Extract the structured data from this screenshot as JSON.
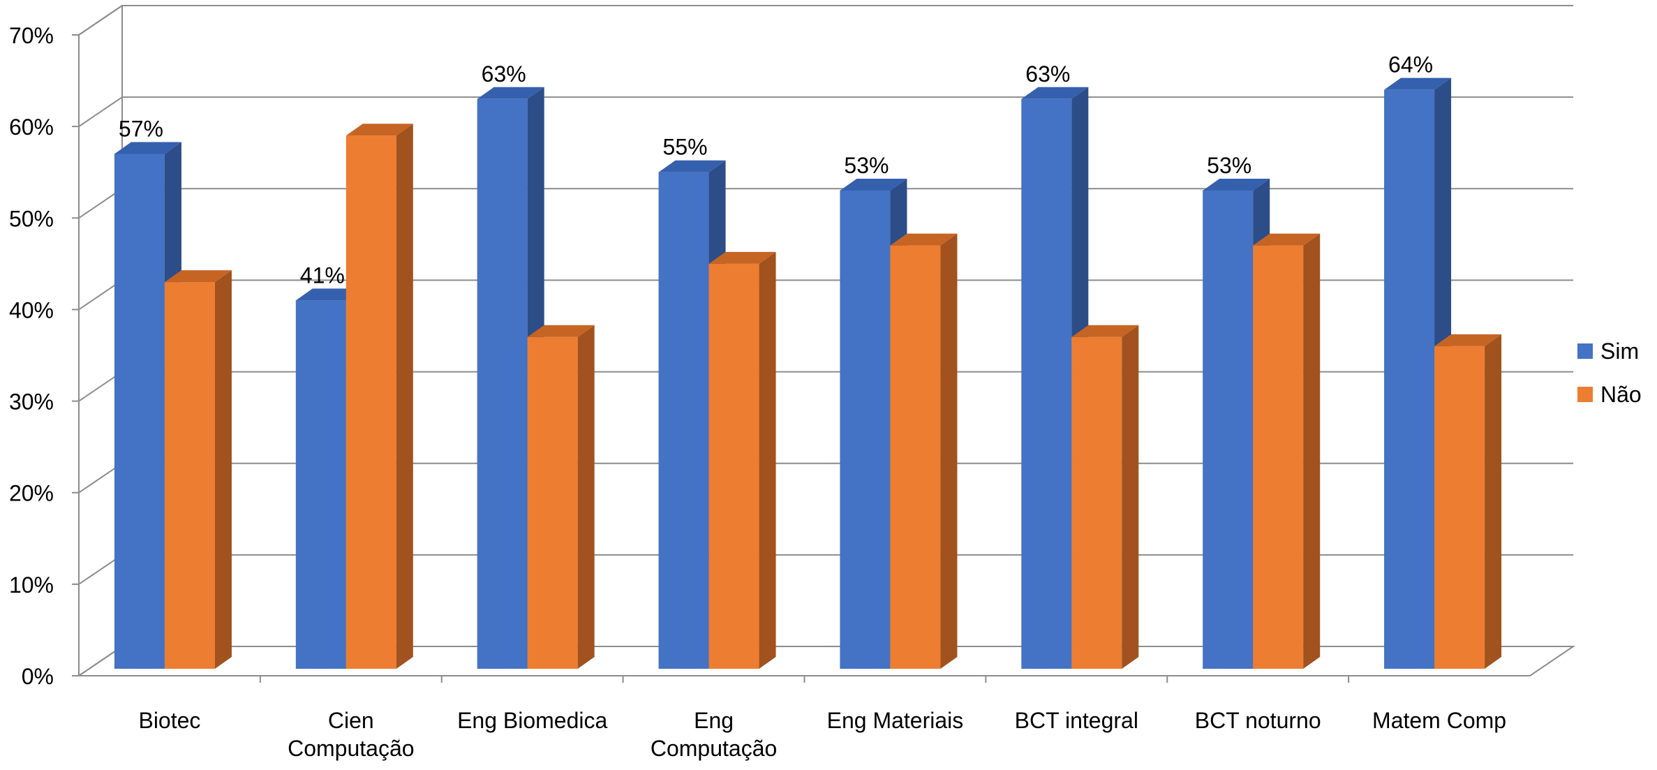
{
  "chart_data": {
    "type": "bar",
    "title": "",
    "xlabel": "",
    "ylabel": "",
    "ylim": [
      0,
      70
    ],
    "y_ticks": [
      "0%",
      "10%",
      "20%",
      "30%",
      "40%",
      "50%",
      "60%",
      "70%"
    ],
    "grid": true,
    "legend_position": "right",
    "categories": [
      [
        "Biotec"
      ],
      [
        "Cien",
        "Computação"
      ],
      [
        "Eng Biomedica"
      ],
      [
        "Eng",
        "Computação"
      ],
      [
        "Eng Materiais"
      ],
      [
        "BCT integral"
      ],
      [
        "BCT noturno"
      ],
      [
        "Matem Comp"
      ]
    ],
    "series": [
      {
        "name": "Sim",
        "color": "#4472C4",
        "side_color": "#2C4D87",
        "top_color": "#3560AE",
        "values": [
          57,
          41,
          63,
          55,
          53,
          63,
          53,
          64
        ],
        "labels": [
          "57%",
          "41%",
          "63%",
          "55%",
          "53%",
          "63%",
          "53%",
          "64%"
        ]
      },
      {
        "name": "Não",
        "color": "#ED7D31",
        "side_color": "#A1521E",
        "top_color": "#C66424",
        "values": [
          43,
          59,
          37,
          45,
          47,
          37,
          47,
          36
        ],
        "labels": [
          "",
          "",
          "",
          "",
          "",
          "",
          "",
          ""
        ]
      }
    ]
  }
}
